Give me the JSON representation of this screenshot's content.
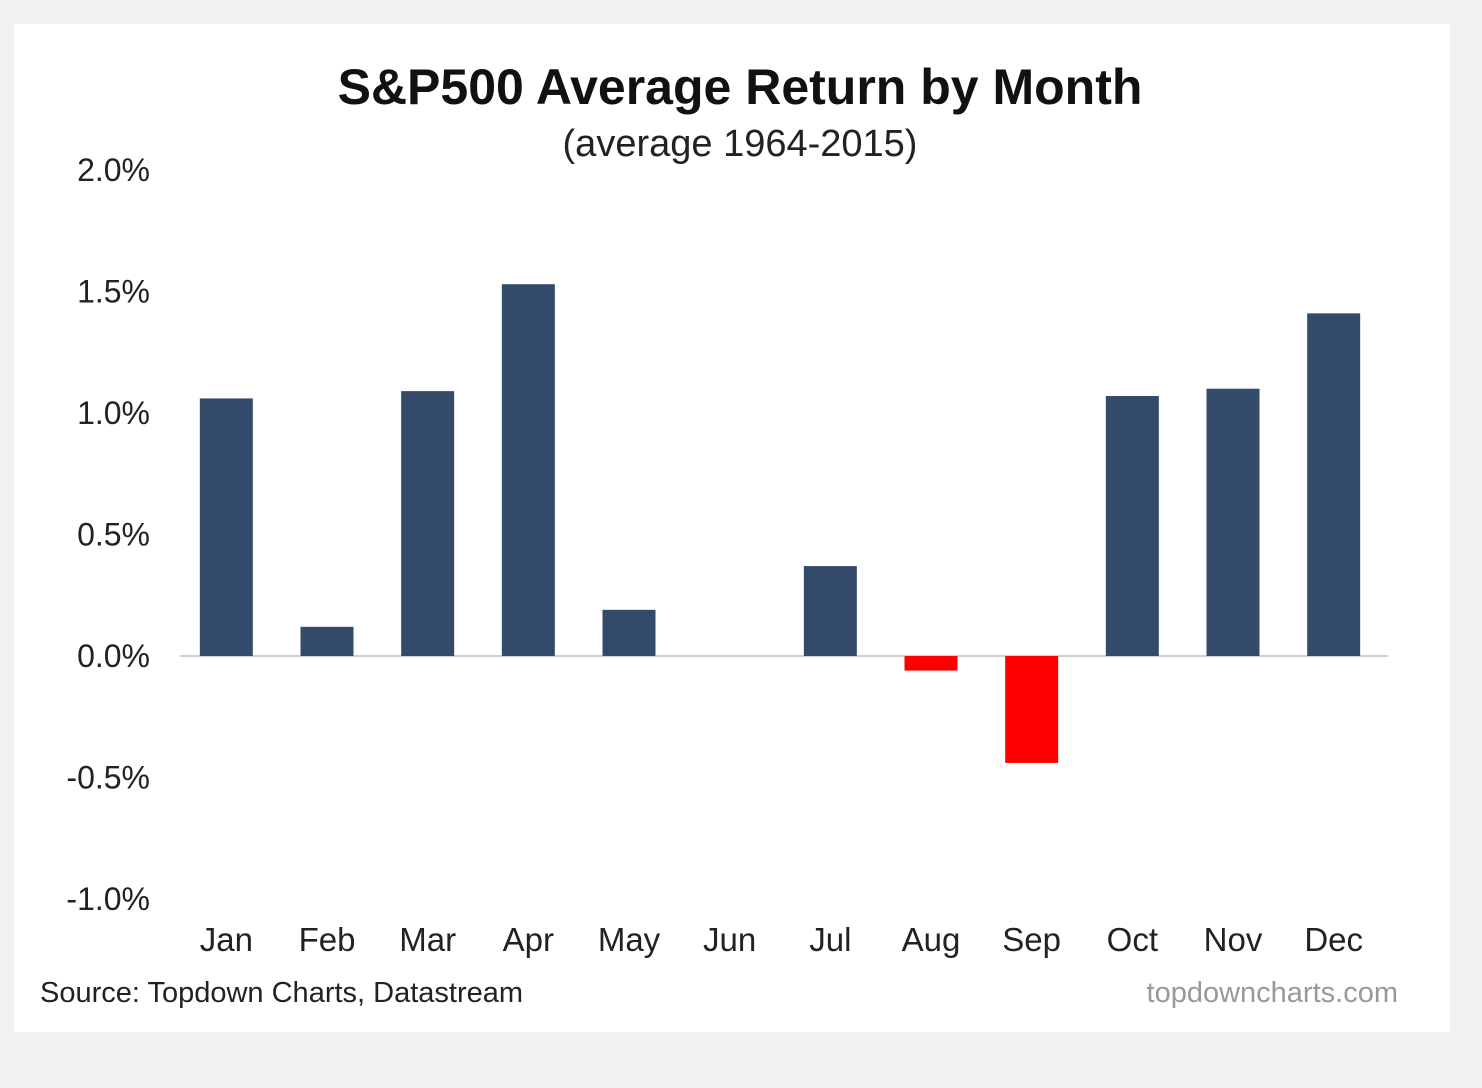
{
  "chart_data": {
    "type": "bar",
    "title": "S&P500 Average Return by Month",
    "subtitle": "(average 1964-2015)",
    "xlabel": "",
    "ylabel": "",
    "categories": [
      "Jan",
      "Feb",
      "Mar",
      "Apr",
      "May",
      "Jun",
      "Jul",
      "Aug",
      "Sep",
      "Oct",
      "Nov",
      "Dec"
    ],
    "values": [
      1.06,
      0.12,
      1.09,
      1.53,
      0.19,
      0.0,
      0.37,
      -0.06,
      -0.44,
      1.07,
      1.1,
      1.41
    ],
    "unit": "%",
    "ylim": [
      -1.0,
      2.0
    ],
    "yticks": [
      2.0,
      1.5,
      1.0,
      0.5,
      0.0,
      -0.5,
      -1.0
    ],
    "ytick_labels": [
      "2.0%",
      "1.5%",
      "1.0%",
      "0.5%",
      "0.0%",
      "-0.5%",
      "-1.0%"
    ],
    "grid": false,
    "colors": {
      "positive": "#344a6a",
      "negative": "#ff0000"
    },
    "source": "Source: Topdown Charts, Datastream",
    "watermark": "topdowncharts.com"
  }
}
